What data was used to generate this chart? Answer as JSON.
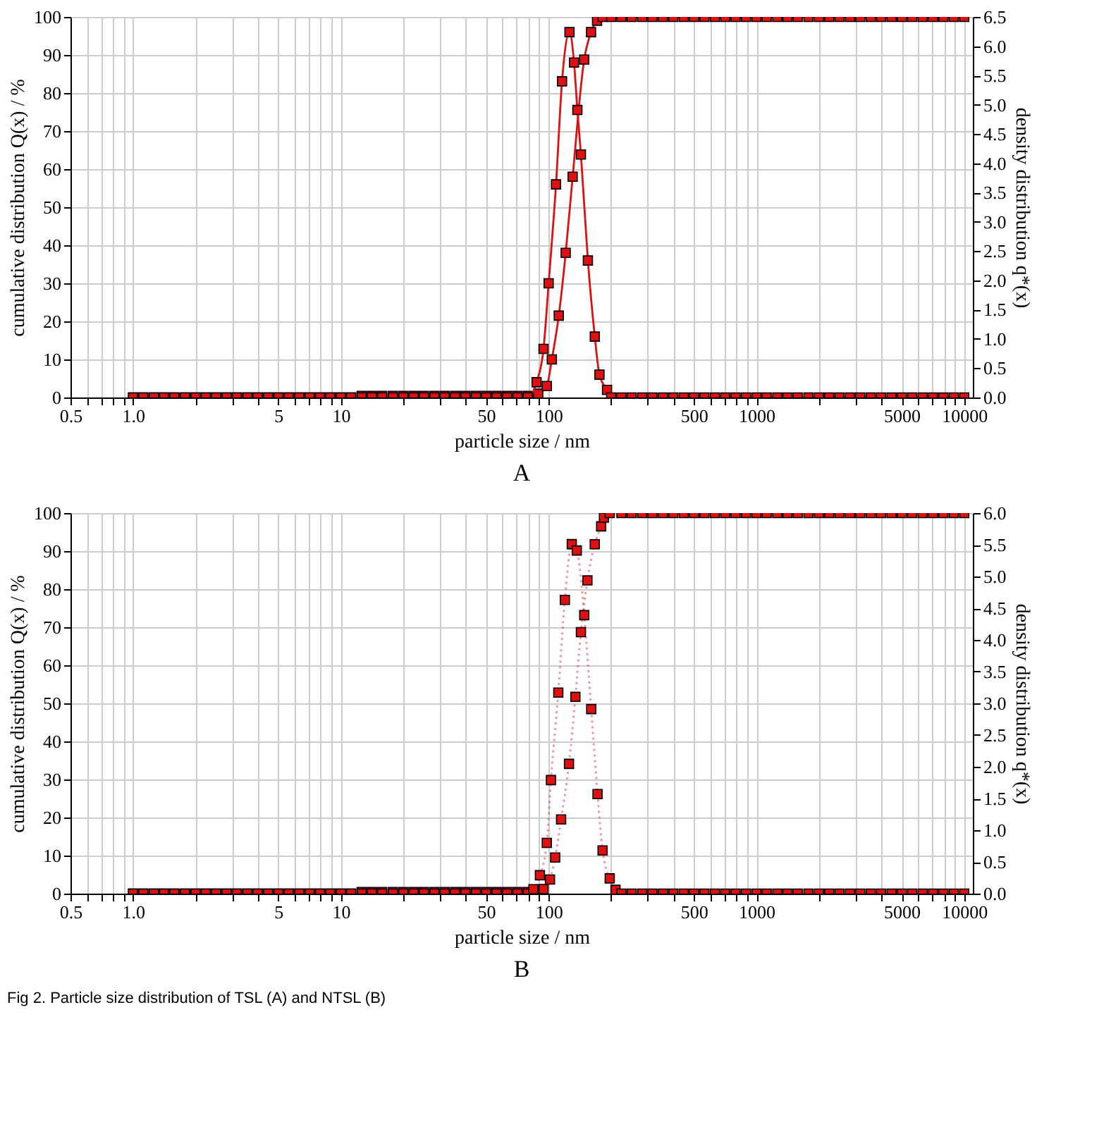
{
  "chart_data": [
    {
      "type": "line",
      "title": "A",
      "xlabel": "particle size / nm",
      "ylabel": "cumulative distribution Q(x) / %",
      "y2label": "density distribution q*(x)",
      "log": "x",
      "grid": true,
      "marker": "square",
      "line_style": "solid",
      "xlim": [
        0.5,
        11000
      ],
      "ylim": [
        0,
        100
      ],
      "y2lim": [
        0,
        6.5
      ],
      "xticks": [
        0.5,
        {
          "value": 0.6,
          "label": null
        },
        {
          "value": 0.7,
          "label": null
        },
        {
          "value": 0.8,
          "label": null
        },
        {
          "value": 0.9,
          "label": null
        },
        {
          "value": 1,
          "label": "1.0"
        },
        {
          "value": 2,
          "label": null
        },
        {
          "value": 3,
          "label": null
        },
        {
          "value": 4,
          "label": null
        },
        5,
        {
          "value": 6,
          "label": null
        },
        {
          "value": 7,
          "label": null
        },
        {
          "value": 8,
          "label": null
        },
        {
          "value": 9,
          "label": null
        },
        10,
        {
          "value": 20,
          "label": null
        },
        {
          "value": 30,
          "label": null
        },
        {
          "value": 40,
          "label": null
        },
        50,
        {
          "value": 60,
          "label": null
        },
        {
          "value": 70,
          "label": null
        },
        {
          "value": 80,
          "label": null
        },
        {
          "value": 90,
          "label": null
        },
        100,
        {
          "value": 200,
          "label": null
        },
        {
          "value": 300,
          "label": null
        },
        {
          "value": 400,
          "label": null
        },
        500,
        {
          "value": 600,
          "label": null
        },
        {
          "value": 700,
          "label": null
        },
        {
          "value": 800,
          "label": null
        },
        {
          "value": 900,
          "label": null
        },
        1000,
        {
          "value": 2000,
          "label": null
        },
        {
          "value": 3000,
          "label": null
        },
        {
          "value": 4000,
          "label": null
        },
        5000,
        {
          "value": 6000,
          "label": null
        },
        {
          "value": 7000,
          "label": null
        },
        {
          "value": 8000,
          "label": null
        },
        {
          "value": 9000,
          "label": null
        },
        10000
      ],
      "yticks": [
        0,
        10,
        20,
        30,
        40,
        50,
        60,
        70,
        80,
        90,
        100
      ],
      "y2ticks": [
        {
          "value": 0,
          "label": "0.0"
        },
        0.5,
        {
          "value": 1,
          "label": "1.0"
        },
        1.5,
        {
          "value": 2,
          "label": "2.0"
        },
        2.5,
        {
          "value": 3,
          "label": "3.0"
        },
        3.5,
        {
          "value": 4,
          "label": "4.0"
        },
        4.5,
        {
          "value": 5,
          "label": "5.0"
        },
        5.5,
        {
          "value": 6,
          "label": "6.0"
        },
        6.5
      ],
      "series": [
        {
          "color": "#dd1111",
          "x": [
            1,
            1.12,
            1.26,
            1.41,
            1.58,
            1.78,
            2,
            2.24,
            2.51,
            2.82,
            3.16,
            3.55,
            3.98,
            4.47,
            5.01,
            5.62,
            6.31,
            7.08,
            7.94,
            8.91,
            10,
            11.2,
            12.6,
            14.1,
            15.8,
            17.8,
            20,
            22.4,
            25.1,
            28.2,
            31.6,
            35.5,
            39.8,
            44.7,
            50.1,
            56.2,
            63.1,
            70.8,
            79.4,
            89.1,
            98,
            103.6,
            111.9,
            120.8,
            130.5,
            148.3,
            160,
            171,
            182,
            200,
            224,
            251,
            282,
            316,
            355,
            398,
            447,
            501,
            562,
            631,
            708,
            794,
            891,
            1000,
            1120,
            1260,
            1410,
            1580,
            1780,
            2000,
            2240,
            2510,
            2820,
            3160,
            3550,
            3980,
            4470,
            5010,
            5620,
            6310,
            7080,
            7940,
            8910,
            10000
          ],
          "values": [
            0,
            0,
            0,
            0,
            0,
            0,
            0,
            0,
            0,
            0,
            0,
            0,
            0,
            0,
            0,
            0,
            0,
            0,
            0,
            0,
            0,
            0,
            0.4,
            0.4,
            0.4,
            0.4,
            0.4,
            0.4,
            0.4,
            0.4,
            0.4,
            0.4,
            0.4,
            0.4,
            0.4,
            0.4,
            0.4,
            0.4,
            0.4,
            1,
            3,
            10,
            21.5,
            38,
            58,
            88.8,
            96,
            99,
            100,
            100,
            100,
            100,
            100,
            100,
            100,
            100,
            100,
            100,
            100,
            100,
            100,
            100,
            100,
            100,
            100,
            100,
            100,
            100,
            100,
            100,
            100,
            100,
            100,
            100,
            100,
            100,
            100,
            100,
            100,
            100,
            100,
            100,
            100,
            100
          ]
        },
        {
          "color": "#dd1111",
          "axis": "y2",
          "x": [
            1,
            1.12,
            1.26,
            1.41,
            1.58,
            1.78,
            2,
            2.24,
            2.51,
            2.82,
            3.16,
            3.55,
            3.98,
            4.47,
            5.01,
            5.62,
            6.31,
            7.08,
            7.94,
            8.91,
            10,
            11.2,
            12.6,
            14.1,
            15.8,
            17.8,
            20,
            22.4,
            25.1,
            28.2,
            31.6,
            35.5,
            39.8,
            44.7,
            50.1,
            56.2,
            63.1,
            70.8,
            79.4,
            87.5,
            94.5,
            100,
            108.5,
            116,
            126,
            132.5,
            137.5,
            143,
            154.5,
            166.8,
            175.6,
            191,
            200,
            224,
            251,
            282,
            316,
            355,
            398,
            447,
            501,
            562,
            631,
            708,
            794,
            891,
            1000,
            1120,
            1260,
            1410,
            1580,
            1780,
            2000,
            2240,
            2510,
            2820,
            3160,
            3550,
            3980,
            4470,
            5010,
            5620,
            6310,
            7080,
            7940,
            8910,
            10000
          ],
          "values": [
            0,
            0,
            0,
            0,
            0,
            0,
            0,
            0,
            0,
            0,
            0,
            0,
            0,
            0,
            0,
            0,
            0,
            0,
            0,
            0,
            0,
            0,
            0,
            0,
            0,
            0,
            0,
            0,
            0,
            0,
            0,
            0,
            0,
            0,
            0,
            0,
            0,
            0,
            0,
            0.26,
            0.83,
            1.95,
            3.64,
            5.4,
            6.24,
            5.72,
            4.91,
            4.15,
            2.34,
            1.04,
            0.39,
            0.13,
            0,
            0,
            0,
            0,
            0,
            0,
            0,
            0,
            0,
            0,
            0,
            0,
            0,
            0,
            0,
            0,
            0,
            0,
            0,
            0,
            0,
            0,
            0,
            0,
            0,
            0,
            0,
            0,
            0,
            0,
            0,
            0,
            0,
            0,
            0
          ]
        }
      ]
    },
    {
      "type": "line",
      "title": "B",
      "xlabel": "particle size / nm",
      "ylabel": "cumulative distribution Q(x) / %",
      "y2label": "density distribution q*(x)",
      "log": "x",
      "grid": true,
      "marker": "square",
      "line_style": "dotted",
      "annotations": [
        "Fig 2.  Particle size distribution of TSL (A) and NTSL (B)"
      ],
      "xlim": [
        0.5,
        11000
      ],
      "ylim": [
        0,
        100
      ],
      "y2lim": [
        0,
        6
      ],
      "xticks": [
        0.5,
        {
          "value": 0.6,
          "label": null
        },
        {
          "value": 0.7,
          "label": null
        },
        {
          "value": 0.8,
          "label": null
        },
        {
          "value": 0.9,
          "label": null
        },
        {
          "value": 1,
          "label": "1.0"
        },
        {
          "value": 2,
          "label": null
        },
        {
          "value": 3,
          "label": null
        },
        {
          "value": 4,
          "label": null
        },
        5,
        {
          "value": 6,
          "label": null
        },
        {
          "value": 7,
          "label": null
        },
        {
          "value": 8,
          "label": null
        },
        {
          "value": 9,
          "label": null
        },
        10,
        {
          "value": 20,
          "label": null
        },
        {
          "value": 30,
          "label": null
        },
        {
          "value": 40,
          "label": null
        },
        50,
        {
          "value": 60,
          "label": null
        },
        {
          "value": 70,
          "label": null
        },
        {
          "value": 80,
          "label": null
        },
        {
          "value": 90,
          "label": null
        },
        100,
        {
          "value": 200,
          "label": null
        },
        {
          "value": 300,
          "label": null
        },
        {
          "value": 400,
          "label": null
        },
        500,
        {
          "value": 600,
          "label": null
        },
        {
          "value": 700,
          "label": null
        },
        {
          "value": 800,
          "label": null
        },
        {
          "value": 900,
          "label": null
        },
        1000,
        {
          "value": 2000,
          "label": null
        },
        {
          "value": 3000,
          "label": null
        },
        {
          "value": 4000,
          "label": null
        },
        5000,
        {
          "value": 6000,
          "label": null
        },
        {
          "value": 7000,
          "label": null
        },
        {
          "value": 8000,
          "label": null
        },
        {
          "value": 9000,
          "label": null
        },
        10000
      ],
      "yticks": [
        0,
        10,
        20,
        30,
        40,
        50,
        60,
        70,
        80,
        90,
        100
      ],
      "y2ticks": [
        {
          "value": 0,
          "label": "0.0"
        },
        0.5,
        {
          "value": 1,
          "label": "1.0"
        },
        1.5,
        {
          "value": 2,
          "label": "2.0"
        },
        2.5,
        {
          "value": 3,
          "label": "3.0"
        },
        3.5,
        {
          "value": 4,
          "label": "4.0"
        },
        4.5,
        {
          "value": 5,
          "label": "5.0"
        },
        5.5,
        {
          "value": 6,
          "label": "6.0"
        }
      ],
      "series": [
        {
          "color": "#dd1111",
          "x": [
            1,
            1.12,
            1.26,
            1.41,
            1.58,
            1.78,
            2,
            2.24,
            2.51,
            2.82,
            3.16,
            3.55,
            3.98,
            4.47,
            5.01,
            5.62,
            6.31,
            7.08,
            7.94,
            8.91,
            10,
            11.2,
            12.6,
            14.1,
            15.8,
            17.8,
            20,
            22.4,
            25.1,
            28.2,
            31.6,
            35.5,
            39.8,
            44.7,
            50.1,
            56.2,
            63.1,
            70.8,
            79.4,
            89.1,
            94.5,
            101.5,
            107.5,
            114.8,
            125.3,
            134.5,
            143,
            153.7,
            166.7,
            179,
            184.6,
            196.8,
            224,
            251,
            282,
            316,
            355,
            398,
            447,
            501,
            562,
            631,
            708,
            794,
            891,
            1000,
            1120,
            1260,
            1410,
            1580,
            1780,
            2000,
            2240,
            2510,
            2820,
            3160,
            3550,
            3980,
            4470,
            5010,
            5620,
            6310,
            7080,
            7940,
            8910,
            10000
          ],
          "values": [
            0,
            0,
            0,
            0,
            0,
            0,
            0,
            0,
            0,
            0,
            0,
            0,
            0,
            0,
            0,
            0,
            0,
            0,
            0,
            0,
            0,
            0,
            0.4,
            0.4,
            0.4,
            0.4,
            0.4,
            0.4,
            0.4,
            0.4,
            0.4,
            0.4,
            0.4,
            0.4,
            0.4,
            0.4,
            0.4,
            0.4,
            0.4,
            0.6,
            1.2,
            3.7,
            9.5,
            19.5,
            34.1,
            51.7,
            68.7,
            82.3,
            91.8,
            96.5,
            98.8,
            100,
            100,
            100,
            100,
            100,
            100,
            100,
            100,
            100,
            100,
            100,
            100,
            100,
            100,
            100,
            100,
            100,
            100,
            100,
            100,
            100,
            100,
            100,
            100,
            100,
            100,
            100,
            100,
            100,
            100,
            100,
            100,
            100,
            100,
            100
          ]
        },
        {
          "color": "#dd1111",
          "axis": "y2",
          "x": [
            1,
            1.12,
            1.26,
            1.41,
            1.58,
            1.78,
            2,
            2.24,
            2.51,
            2.82,
            3.16,
            3.55,
            3.98,
            4.47,
            5.01,
            5.62,
            6.31,
            7.08,
            7.94,
            8.91,
            10,
            11.2,
            12.6,
            14.1,
            15.8,
            17.8,
            20,
            22.4,
            25.1,
            28.2,
            31.6,
            35.5,
            39.8,
            44.7,
            50.1,
            56.2,
            63.1,
            70.8,
            79.4,
            84.5,
            90.8,
            98,
            102.6,
            111.3,
            119.7,
            129.2,
            136.6,
            148.4,
            160.3,
            171.9,
            181.8,
            196.8,
            209.8,
            224,
            251,
            282,
            316,
            355,
            398,
            447,
            501,
            562,
            631,
            708,
            794,
            891,
            1000,
            1120,
            1260,
            1410,
            1580,
            1780,
            2000,
            2240,
            2510,
            2820,
            3160,
            3550,
            3980,
            4470,
            5010,
            5620,
            6310,
            7080,
            7940,
            8910,
            10000
          ],
          "values": [
            0,
            0,
            0,
            0,
            0,
            0,
            0,
            0,
            0,
            0,
            0,
            0,
            0,
            0,
            0,
            0,
            0,
            0,
            0,
            0,
            0,
            0,
            0,
            0,
            0,
            0,
            0,
            0,
            0,
            0,
            0,
            0,
            0,
            0,
            0,
            0,
            0,
            0,
            0,
            0.07,
            0.29,
            0.8,
            1.79,
            3.17,
            4.63,
            5.51,
            5.41,
            4.39,
            2.91,
            1.57,
            0.68,
            0.24,
            0.06,
            0,
            0,
            0,
            0,
            0,
            0,
            0,
            0,
            0,
            0,
            0,
            0,
            0,
            0,
            0,
            0,
            0,
            0,
            0,
            0,
            0,
            0,
            0,
            0,
            0,
            0,
            0,
            0,
            0,
            0,
            0,
            0,
            0,
            0
          ]
        }
      ]
    }
  ]
}
